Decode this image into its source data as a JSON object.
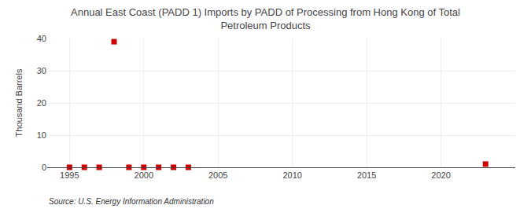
{
  "chart_data": {
    "type": "scatter",
    "title": "Annual East Coast (PADD 1) Imports by PADD of Processing from Hong Kong of Total\nPetroleum Products",
    "ylabel": "Thousand Barrels",
    "annotations": [
      "Source: U.S. Energy Information Administration"
    ],
    "x": [
      1995,
      1996,
      1997,
      1998,
      1999,
      2000,
      2001,
      2002,
      2003,
      2023
    ],
    "values": [
      0,
      0,
      0,
      39,
      0,
      0,
      0,
      0,
      0,
      1
    ],
    "color": "#cc0000",
    "marker": "square",
    "xlim": [
      1993.5,
      2025
    ],
    "ylim": [
      0,
      40
    ],
    "xticks": [
      1995,
      2000,
      2005,
      2010,
      2015,
      2020
    ],
    "yticks": [
      0,
      10,
      20,
      30,
      40
    ],
    "grid": true
  }
}
